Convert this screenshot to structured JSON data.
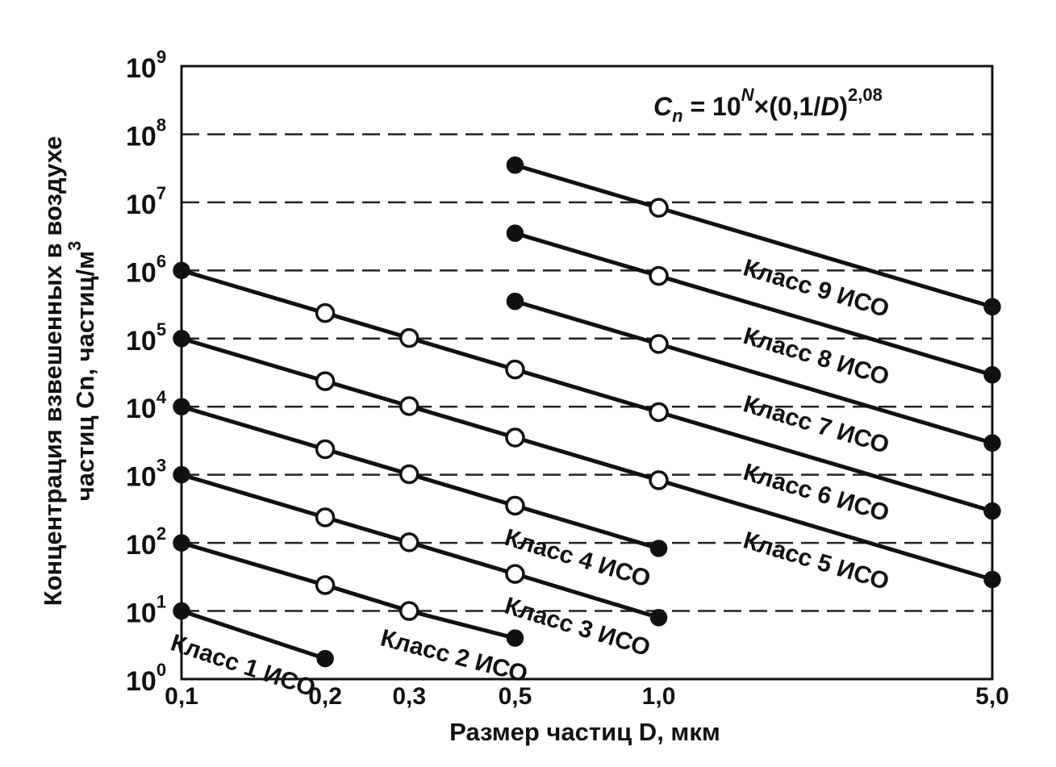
{
  "chart_data": {
    "type": "line",
    "title": "",
    "xlabel": "Размер частиц D, мкм",
    "ylabel_line1": "Концентрация взвешенных в воздухе",
    "ylabel_line2": "частиц Cn, частиц/м",
    "ylabel_unit_exp": "3",
    "x_scale": "log",
    "y_scale": "log",
    "xlim": [
      0.1,
      5.0
    ],
    "ylim": [
      1,
      1000000000
    ],
    "x_ticks": [
      {
        "value": 0.1,
        "label": "0,1"
      },
      {
        "value": 0.2,
        "label": "0,2"
      },
      {
        "value": 0.3,
        "label": "0,3"
      },
      {
        "value": 0.5,
        "label": "0,5"
      },
      {
        "value": 1.0,
        "label": "1,0"
      },
      {
        "value": 5.0,
        "label": "5,0"
      }
    ],
    "y_ticks": [
      {
        "value": 1,
        "base": "10",
        "exp": "0"
      },
      {
        "value": 10,
        "base": "10",
        "exp": "1"
      },
      {
        "value": 100,
        "base": "10",
        "exp": "2"
      },
      {
        "value": 1000,
        "base": "10",
        "exp": "3"
      },
      {
        "value": 10000,
        "base": "10",
        "exp": "4"
      },
      {
        "value": 100000,
        "base": "10",
        "exp": "5"
      },
      {
        "value": 1000000,
        "base": "10",
        "exp": "6"
      },
      {
        "value": 10000000,
        "base": "10",
        "exp": "7"
      },
      {
        "value": 100000000,
        "base": "10",
        "exp": "8"
      },
      {
        "value": 1000000000,
        "base": "10",
        "exp": "9"
      }
    ],
    "grid": "horizontal dashed",
    "formula": {
      "lhs": "C",
      "lhs_sub": "n",
      "eq": " = 10",
      "exp": "N",
      "mid": "×(0,1/",
      "var": "D",
      "close": ")",
      "power": "2,08"
    },
    "series": [
      {
        "name": "Класс 1 ИСО",
        "x": [
          0.1,
          0.2
        ],
        "y": [
          10,
          2
        ],
        "filled": [
          true,
          true
        ]
      },
      {
        "name": "Класс 2 ИСО",
        "x": [
          0.1,
          0.2,
          0.3,
          0.5
        ],
        "y": [
          100,
          24,
          10,
          4
        ],
        "filled": [
          true,
          false,
          false,
          true
        ]
      },
      {
        "name": "Класс 3 ИСО",
        "x": [
          0.1,
          0.2,
          0.3,
          0.5,
          1.0
        ],
        "y": [
          1000,
          237,
          102,
          35,
          8
        ],
        "filled": [
          true,
          false,
          false,
          false,
          true
        ]
      },
      {
        "name": "Класс 4 ИСО",
        "x": [
          0.1,
          0.2,
          0.3,
          0.5,
          1.0
        ],
        "y": [
          10000,
          2370,
          1020,
          352,
          83
        ],
        "filled": [
          true,
          false,
          false,
          false,
          true
        ]
      },
      {
        "name": "Класс 5 ИСО",
        "x": [
          0.1,
          0.2,
          0.3,
          0.5,
          1.0,
          5.0
        ],
        "y": [
          100000,
          23700,
          10200,
          3520,
          832,
          29
        ],
        "filled": [
          true,
          false,
          false,
          false,
          false,
          true
        ]
      },
      {
        "name": "Класс 6 ИСО",
        "x": [
          0.1,
          0.2,
          0.3,
          0.5,
          1.0,
          5.0
        ],
        "y": [
          1000000,
          237000,
          102000,
          35200,
          8320,
          293
        ],
        "filled": [
          true,
          false,
          false,
          false,
          false,
          true
        ]
      },
      {
        "name": "Класс 7 ИСО",
        "x": [
          0.5,
          1.0,
          5.0
        ],
        "y": [
          352000,
          83200,
          2930
        ],
        "filled": [
          true,
          false,
          true
        ]
      },
      {
        "name": "Класс 8 ИСО",
        "x": [
          0.5,
          1.0,
          5.0
        ],
        "y": [
          3520000,
          832000,
          29300
        ],
        "filled": [
          true,
          false,
          true
        ]
      },
      {
        "name": "Класс 9 ИСО",
        "x": [
          0.5,
          1.0,
          5.0
        ],
        "y": [
          35200000,
          8320000,
          293000
        ],
        "filled": [
          true,
          false,
          true
        ]
      }
    ]
  }
}
